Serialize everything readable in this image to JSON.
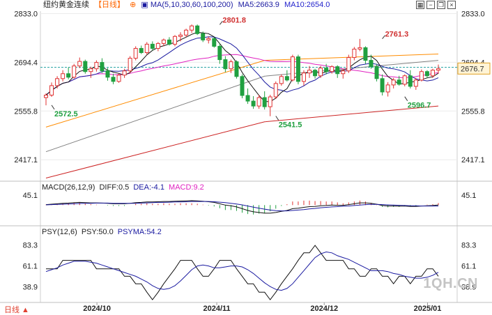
{
  "header": {
    "symbol": "纽约黄金连续",
    "period": "【日线】",
    "ma_label": "MA(5,10,30,60,100,200)",
    "ma5": "MA5:2663.9",
    "ma10": "MA10:2654.0",
    "colors": {
      "symbol": "#222222",
      "period": "#ff6600",
      "ma_label": "#1a1aa0",
      "ma5": "#1a1aa0",
      "ma10": "#2222cc"
    }
  },
  "window_controls": [
    "chart-icon",
    "minus-icon",
    "restore-icon",
    "close-icon"
  ],
  "macd_header": {
    "label": "MACD(26,12,9)",
    "diff": "DIFF:0.5",
    "dea": "DEA:-4.1",
    "macd": "MACD:9.2"
  },
  "psy_header": {
    "label": "PSY(12,6)",
    "psy": "PSY:50.0",
    "psyma": "PSYMA:54.2"
  },
  "watermark": "1QH.CN",
  "footer": "日线 ▲",
  "chart_data": [
    {
      "type": "candlestick",
      "panel": "price",
      "ylim": [
        2360,
        2840
      ],
      "y_ticks": [
        "2833.0",
        "2694.4",
        "2555.8",
        "2417.1"
      ],
      "y_tick_values": [
        2833.0,
        2694.4,
        2555.8,
        2417.1
      ],
      "last_price_label": "2676.7",
      "last_price": 2676.7,
      "reference_line": 2680,
      "annotations": [
        {
          "text": "2801.8",
          "x": 31,
          "y": 2801.8,
          "color": "#d03030"
        },
        {
          "text": "2761.3",
          "x": 60,
          "y": 2761.3,
          "color": "#d03030"
        },
        {
          "text": "2572.5",
          "x": 1,
          "y": 2572.5,
          "color": "#20a040"
        },
        {
          "text": "2541.5",
          "x": 41,
          "y": 2541.5,
          "color": "#20a040"
        },
        {
          "text": "2596.7",
          "x": 64,
          "y": 2596.7,
          "color": "#20a040"
        }
      ],
      "candles": [
        [
          2594,
          2606,
          2572,
          2601
        ],
        [
          2601,
          2637,
          2596,
          2628
        ],
        [
          2628,
          2655,
          2620,
          2648
        ],
        [
          2648,
          2672,
          2640,
          2662
        ],
        [
          2662,
          2680,
          2646,
          2652
        ],
        [
          2652,
          2690,
          2648,
          2684
        ],
        [
          2684,
          2708,
          2678,
          2697
        ],
        [
          2697,
          2702,
          2662,
          2668
        ],
        [
          2668,
          2682,
          2650,
          2676
        ],
        [
          2676,
          2700,
          2668,
          2694
        ],
        [
          2694,
          2706,
          2664,
          2670
        ],
        [
          2670,
          2678,
          2642,
          2652
        ],
        [
          2652,
          2662,
          2632,
          2640
        ],
        [
          2640,
          2662,
          2636,
          2658
        ],
        [
          2658,
          2676,
          2650,
          2670
        ],
        [
          2670,
          2712,
          2664,
          2706
        ],
        [
          2706,
          2740,
          2700,
          2734
        ],
        [
          2734,
          2742,
          2718,
          2722
        ],
        [
          2722,
          2752,
          2716,
          2746
        ],
        [
          2746,
          2754,
          2728,
          2734
        ],
        [
          2734,
          2752,
          2726,
          2748
        ],
        [
          2748,
          2762,
          2740,
          2758
        ],
        [
          2758,
          2766,
          2742,
          2746
        ],
        [
          2746,
          2772,
          2740,
          2768
        ],
        [
          2768,
          2780,
          2754,
          2772
        ],
        [
          2772,
          2790,
          2766,
          2786
        ],
        [
          2786,
          2802,
          2778,
          2798
        ],
        [
          2798,
          2802,
          2772,
          2776
        ],
        [
          2776,
          2782,
          2752,
          2758
        ],
        [
          2758,
          2768,
          2748,
          2762
        ],
        [
          2762,
          2766,
          2736,
          2740
        ],
        [
          2740,
          2748,
          2690,
          2702
        ],
        [
          2702,
          2712,
          2666,
          2676
        ],
        [
          2676,
          2702,
          2664,
          2696
        ],
        [
          2696,
          2700,
          2648,
          2654
        ],
        [
          2654,
          2660,
          2592,
          2600
        ],
        [
          2600,
          2620,
          2576,
          2584
        ],
        [
          2584,
          2598,
          2562,
          2570
        ],
        [
          2570,
          2602,
          2562,
          2594
        ],
        [
          2594,
          2612,
          2560,
          2568
        ],
        [
          2568,
          2602,
          2541,
          2596
        ],
        [
          2596,
          2640,
          2590,
          2634
        ],
        [
          2634,
          2660,
          2628,
          2654
        ],
        [
          2654,
          2672,
          2640,
          2644
        ],
        [
          2644,
          2716,
          2640,
          2710
        ],
        [
          2710,
          2716,
          2632,
          2640
        ],
        [
          2640,
          2672,
          2628,
          2664
        ],
        [
          2664,
          2684,
          2650,
          2672
        ],
        [
          2672,
          2676,
          2648,
          2656
        ],
        [
          2656,
          2684,
          2650,
          2678
        ],
        [
          2678,
          2690,
          2660,
          2668
        ],
        [
          2668,
          2686,
          2662,
          2682
        ],
        [
          2682,
          2686,
          2650,
          2662
        ],
        [
          2662,
          2676,
          2648,
          2670
        ],
        [
          2670,
          2716,
          2664,
          2708
        ],
        [
          2708,
          2738,
          2700,
          2732
        ],
        [
          2732,
          2761,
          2726,
          2736
        ],
        [
          2736,
          2740,
          2690,
          2700
        ],
        [
          2700,
          2716,
          2676,
          2682
        ],
        [
          2682,
          2690,
          2640,
          2648
        ],
        [
          2648,
          2660,
          2600,
          2610
        ],
        [
          2610,
          2638,
          2597,
          2630
        ],
        [
          2630,
          2650,
          2620,
          2644
        ],
        [
          2644,
          2656,
          2628,
          2632
        ],
        [
          2632,
          2660,
          2626,
          2656
        ],
        [
          2656,
          2672,
          2620,
          2626
        ],
        [
          2626,
          2650,
          2616,
          2644
        ],
        [
          2644,
          2674,
          2640,
          2668
        ],
        [
          2668,
          2672,
          2650,
          2656
        ],
        [
          2656,
          2676,
          2650,
          2672
        ],
        [
          2672,
          2688,
          2662,
          2676
        ]
      ],
      "ma_series": [
        {
          "period": 5,
          "color": "#111111"
        },
        {
          "period": 10,
          "color": "#1a1aa0"
        },
        {
          "period": 30,
          "color": "#e020c0"
        },
        {
          "period": 60,
          "color": "#ff8c00"
        },
        {
          "period": 100,
          "color": "#808080"
        },
        {
          "period": 200,
          "color": "#cc2222"
        }
      ],
      "ma_long": {
        "ma60": [
          2510,
          2700,
          2718
        ],
        "ma100": [
          2440,
          2655,
          2700
        ],
        "ma200": [
          2365,
          2525,
          2570
        ]
      },
      "colors": {
        "up": "#e03030",
        "down": "#20a040"
      }
    },
    {
      "type": "bar",
      "panel": "macd",
      "ylim": [
        -80,
        60
      ],
      "y_ticks": [
        "45.1"
      ],
      "y_tick_values": [
        45.1
      ],
      "diff": [
        2,
        4,
        6,
        8,
        9,
        11,
        12,
        11,
        10,
        10,
        9,
        8,
        6,
        6,
        6,
        8,
        11,
        12,
        14,
        14,
        15,
        16,
        16,
        17,
        18,
        19,
        20,
        19,
        17,
        15,
        12,
        6,
        0,
        -3,
        -8,
        -16,
        -24,
        -30,
        -33,
        -36,
        -36,
        -33,
        -28,
        -24,
        -16,
        -14,
        -10,
        -7,
        -6,
        -3,
        -2,
        0,
        -1,
        -1,
        2,
        6,
        10,
        10,
        8,
        4,
        -2,
        -4,
        -4,
        -5,
        -4,
        -6,
        -6,
        -4,
        -3,
        -2,
        0.5
      ],
      "dea": [
        1,
        2,
        3,
        4,
        5,
        6,
        7,
        8,
        8,
        9,
        9,
        9,
        8,
        8,
        8,
        8,
        8,
        9,
        10,
        11,
        12,
        12,
        13,
        14,
        14,
        15,
        16,
        16,
        16,
        16,
        15,
        13,
        11,
        8,
        5,
        1,
        -4,
        -9,
        -14,
        -18,
        -22,
        -25,
        -26,
        -26,
        -24,
        -22,
        -20,
        -17,
        -15,
        -12,
        -10,
        -8,
        -7,
        -5,
        -4,
        -2,
        0,
        2,
        3,
        3,
        2,
        1,
        0,
        -1,
        -2,
        -3,
        -3,
        -4,
        -4,
        -4,
        -4.1
      ],
      "macd": [
        2,
        4,
        6,
        8,
        8,
        10,
        10,
        6,
        4,
        2,
        0,
        -2,
        -4,
        -4,
        -4,
        0,
        6,
        6,
        8,
        6,
        6,
        8,
        6,
        6,
        8,
        8,
        8,
        6,
        2,
        -2,
        -6,
        -14,
        -22,
        -22,
        -26,
        -34,
        -40,
        -42,
        -38,
        -36,
        -28,
        -16,
        -4,
        4,
        16,
        16,
        20,
        20,
        18,
        18,
        16,
        16,
        12,
        8,
        12,
        16,
        20,
        16,
        10,
        2,
        -8,
        -10,
        -8,
        -8,
        -4,
        -6,
        -6,
        0,
        2,
        4,
        9.2
      ]
    },
    {
      "type": "line",
      "panel": "psy",
      "ylim": [
        25,
        92
      ],
      "y_ticks": [
        "83.3",
        "61.1",
        "38.9"
      ],
      "y_tick_values": [
        83.3,
        61.1,
        38.9
      ],
      "psy": [
        58,
        58,
        58,
        67,
        67,
        67,
        67,
        67,
        67,
        58,
        58,
        58,
        58,
        58,
        50,
        50,
        42,
        42,
        33,
        25,
        33,
        42,
        50,
        58,
        67,
        67,
        67,
        58,
        50,
        50,
        58,
        67,
        67,
        67,
        58,
        50,
        42,
        42,
        33,
        33,
        25,
        33,
        42,
        50,
        58,
        67,
        75,
        75,
        83,
        75,
        67,
        67,
        67,
        67,
        58,
        58,
        50,
        50,
        58,
        58,
        50,
        50,
        42,
        50,
        50,
        42,
        50,
        50,
        58,
        58,
        50
      ],
      "psyma": [
        55,
        57,
        59,
        62,
        64,
        66,
        66,
        66,
        65,
        64,
        62,
        60,
        58,
        56,
        54,
        52,
        50,
        47,
        44,
        40,
        37,
        36,
        37,
        40,
        45,
        51,
        57,
        61,
        62,
        61,
        59,
        59,
        60,
        61,
        61,
        60,
        57,
        53,
        48,
        43,
        39,
        36,
        35,
        37,
        42,
        49,
        56,
        63,
        70,
        74,
        76,
        75,
        72,
        70,
        68,
        65,
        62,
        59,
        56,
        56,
        56,
        55,
        53,
        52,
        50,
        49,
        48,
        48,
        49,
        51,
        54.2
      ]
    }
  ],
  "axis_dates": [
    "2024/10",
    "2024/11",
    "2024/12",
    "2025/01"
  ]
}
